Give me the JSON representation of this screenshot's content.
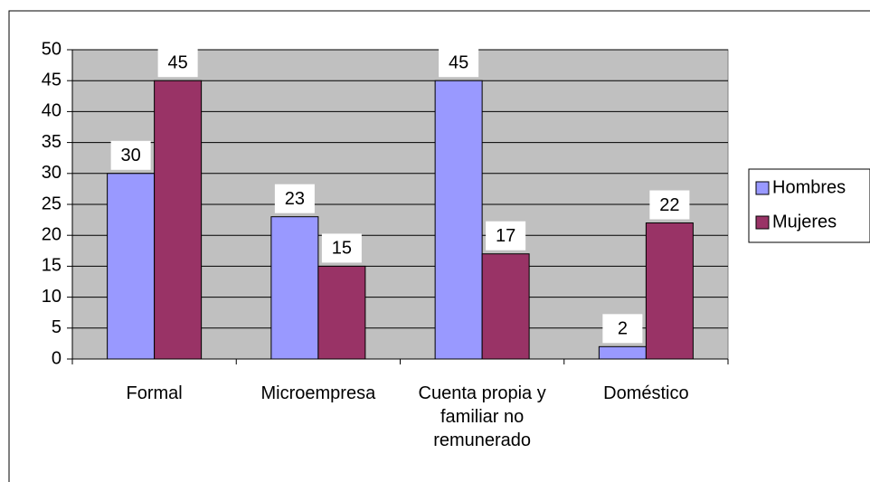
{
  "chart_data": {
    "type": "bar",
    "categories": [
      "Formal",
      "Microempresa",
      "Cuenta propia y familiar no remunerado",
      "Doméstico"
    ],
    "series": [
      {
        "name": "Hombres",
        "color": "#9999ff",
        "values": [
          30,
          23,
          45,
          2
        ]
      },
      {
        "name": "Mujeres",
        "color": "#993366",
        "values": [
          45,
          15,
          17,
          22
        ]
      }
    ],
    "ylim": [
      0,
      50
    ],
    "yticks": [
      0,
      5,
      10,
      15,
      20,
      25,
      30,
      35,
      40,
      45,
      50
    ],
    "grid": true,
    "legend": "right",
    "plot_background": "#c0c0c0"
  }
}
